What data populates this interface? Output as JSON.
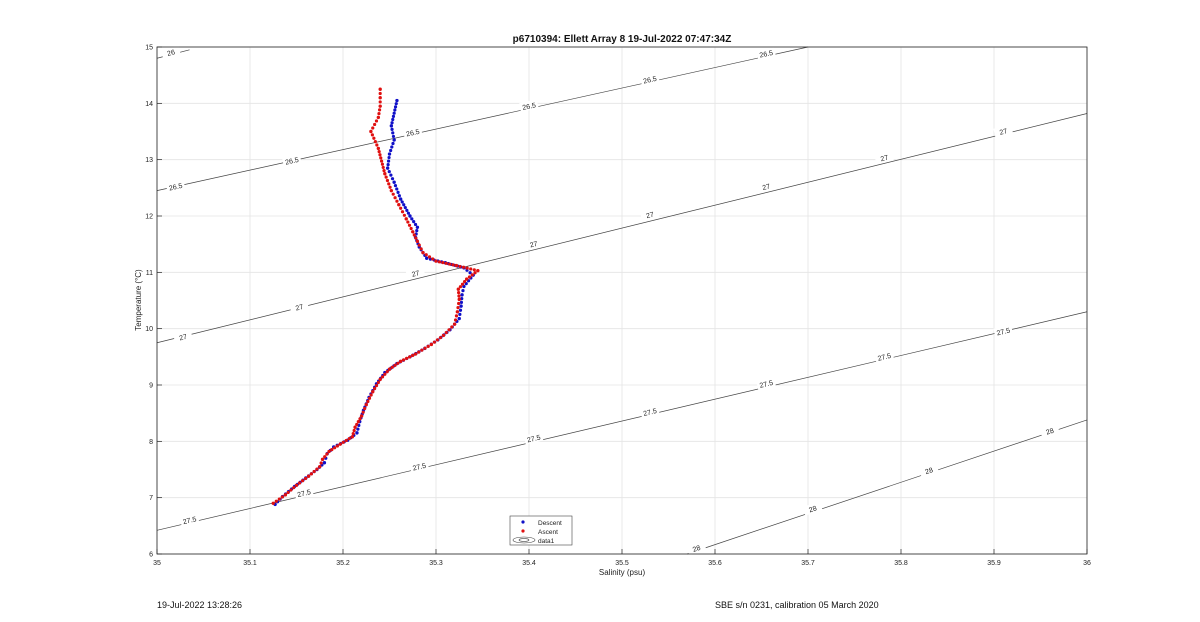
{
  "footer": {
    "left": "19-Jul-2022 13:28:26",
    "right": "SBE s/n 0231, calibration 05 March 2020"
  },
  "chart_data": {
    "type": "scatter",
    "title": "p6710394: Ellett Array 8 19-Jul-2022 07:47:34Z",
    "xlabel": "Salinity (psu)",
    "ylabel": "Temperature (°C)",
    "xlim": [
      35,
      36
    ],
    "ylim": [
      6,
      15
    ],
    "xticks": [
      "35",
      "35.1",
      "35.2",
      "35.3",
      "35.4",
      "35.5",
      "35.6",
      "35.7",
      "35.8",
      "35.9",
      "36"
    ],
    "yticks": [
      "6",
      "7",
      "8",
      "9",
      "10",
      "11",
      "12",
      "13",
      "14",
      "15"
    ],
    "grid": true,
    "legend": {
      "placement": "bottom-center",
      "entries": [
        "Descent",
        "Ascent",
        "data1"
      ]
    },
    "colors": {
      "descent": "#1010c8",
      "ascent": "#e01010",
      "contour": "#444444",
      "grid": "#e4e4e4"
    },
    "series": [
      {
        "name": "Descent",
        "marker": "dot",
        "points": [
          [
            35.127,
            6.88
          ],
          [
            35.135,
            7.02
          ],
          [
            35.148,
            7.2
          ],
          [
            35.16,
            7.35
          ],
          [
            35.172,
            7.5
          ],
          [
            35.18,
            7.62
          ],
          [
            35.183,
            7.78
          ],
          [
            35.19,
            7.9
          ],
          [
            35.205,
            8.02
          ],
          [
            35.215,
            8.15
          ],
          [
            35.218,
            8.35
          ],
          [
            35.222,
            8.55
          ],
          [
            35.228,
            8.78
          ],
          [
            35.236,
            9.02
          ],
          [
            35.245,
            9.22
          ],
          [
            35.258,
            9.38
          ],
          [
            35.272,
            9.5
          ],
          [
            35.288,
            9.65
          ],
          [
            35.302,
            9.8
          ],
          [
            35.315,
            9.98
          ],
          [
            35.325,
            10.18
          ],
          [
            35.327,
            10.4
          ],
          [
            35.328,
            10.6
          ],
          [
            35.33,
            10.75
          ],
          [
            35.34,
            10.95
          ],
          [
            35.33,
            11.08
          ],
          [
            35.31,
            11.17
          ],
          [
            35.29,
            11.25
          ],
          [
            35.282,
            11.45
          ],
          [
            35.278,
            11.62
          ],
          [
            35.28,
            11.8
          ],
          [
            35.272,
            12.0
          ],
          [
            35.262,
            12.3
          ],
          [
            35.255,
            12.6
          ],
          [
            35.248,
            12.85
          ],
          [
            35.25,
            13.1
          ],
          [
            35.255,
            13.35
          ],
          [
            35.252,
            13.6
          ],
          [
            35.258,
            14.05
          ]
        ]
      },
      {
        "name": "Ascent",
        "marker": "dot",
        "points": [
          [
            35.125,
            6.9
          ],
          [
            35.138,
            7.05
          ],
          [
            35.15,
            7.22
          ],
          [
            35.163,
            7.38
          ],
          [
            35.175,
            7.55
          ],
          [
            35.178,
            7.68
          ],
          [
            35.185,
            7.82
          ],
          [
            35.197,
            7.95
          ],
          [
            35.21,
            8.08
          ],
          [
            35.213,
            8.25
          ],
          [
            35.22,
            8.45
          ],
          [
            35.225,
            8.65
          ],
          [
            35.232,
            8.88
          ],
          [
            35.24,
            9.1
          ],
          [
            35.25,
            9.28
          ],
          [
            35.262,
            9.42
          ],
          [
            35.278,
            9.55
          ],
          [
            35.295,
            9.72
          ],
          [
            35.308,
            9.88
          ],
          [
            35.32,
            10.08
          ],
          [
            35.323,
            10.3
          ],
          [
            35.325,
            10.52
          ],
          [
            35.324,
            10.7
          ],
          [
            35.333,
            10.88
          ],
          [
            35.345,
            11.03
          ],
          [
            35.322,
            11.12
          ],
          [
            35.3,
            11.2
          ],
          [
            35.286,
            11.35
          ],
          [
            35.28,
            11.55
          ],
          [
            35.275,
            11.72
          ],
          [
            35.268,
            11.95
          ],
          [
            35.26,
            12.2
          ],
          [
            35.252,
            12.45
          ],
          [
            35.245,
            12.75
          ],
          [
            35.238,
            13.2
          ],
          [
            35.23,
            13.5
          ],
          [
            35.238,
            13.75
          ],
          [
            35.24,
            13.95
          ],
          [
            35.24,
            14.1
          ],
          [
            35.24,
            14.25
          ]
        ]
      }
    ],
    "contours": [
      {
        "label": "26",
        "x": [
          35,
          35.035
        ],
        "y": [
          14.8,
          14.95
        ]
      },
      {
        "label": "26.5",
        "x": [
          35,
          35.7
        ],
        "y": [
          12.45,
          15.0
        ]
      },
      {
        "label": "27",
        "x": [
          35,
          36
        ],
        "y": [
          9.75,
          13.82
        ]
      },
      {
        "label": "27.5",
        "x": [
          35,
          36
        ],
        "y": [
          6.42,
          10.3
        ]
      },
      {
        "label": "28",
        "x": [
          35.57,
          36
        ],
        "y": [
          6.0,
          8.38
        ]
      }
    ],
    "contour_labels": [
      {
        "text": "26",
        "x": 35.015,
        "y": 14.9
      },
      {
        "text": "26.5",
        "x": 35.02,
        "y": 12.52
      },
      {
        "text": "26.5",
        "x": 35.145,
        "y": 12.98
      },
      {
        "text": "26.5",
        "x": 35.275,
        "y": 13.48
      },
      {
        "text": "26.5",
        "x": 35.4,
        "y": 13.95
      },
      {
        "text": "26.5",
        "x": 35.53,
        "y": 14.42
      },
      {
        "text": "26.5",
        "x": 35.655,
        "y": 14.88
      },
      {
        "text": "27",
        "x": 35.028,
        "y": 9.85
      },
      {
        "text": "27",
        "x": 35.153,
        "y": 10.38
      },
      {
        "text": "27",
        "x": 35.278,
        "y": 10.98
      },
      {
        "text": "27",
        "x": 35.405,
        "y": 11.5
      },
      {
        "text": "27",
        "x": 35.53,
        "y": 12.02
      },
      {
        "text": "27",
        "x": 35.655,
        "y": 12.52
      },
      {
        "text": "27",
        "x": 35.782,
        "y": 13.03
      },
      {
        "text": "27",
        "x": 35.91,
        "y": 13.5
      },
      {
        "text": "27.5",
        "x": 35.035,
        "y": 6.6
      },
      {
        "text": "27.5",
        "x": 35.158,
        "y": 7.08
      },
      {
        "text": "27.5",
        "x": 35.282,
        "y": 7.55
      },
      {
        "text": "27.5",
        "x": 35.405,
        "y": 8.05
      },
      {
        "text": "27.5",
        "x": 35.53,
        "y": 8.52
      },
      {
        "text": "27.5",
        "x": 35.655,
        "y": 9.02
      },
      {
        "text": "27.5",
        "x": 35.782,
        "y": 9.5
      },
      {
        "text": "27.5",
        "x": 35.91,
        "y": 9.95
      },
      {
        "text": "28",
        "x": 35.58,
        "y": 6.1
      },
      {
        "text": "28",
        "x": 35.705,
        "y": 6.8
      },
      {
        "text": "28",
        "x": 35.83,
        "y": 7.48
      },
      {
        "text": "28",
        "x": 35.96,
        "y": 8.18
      }
    ]
  }
}
